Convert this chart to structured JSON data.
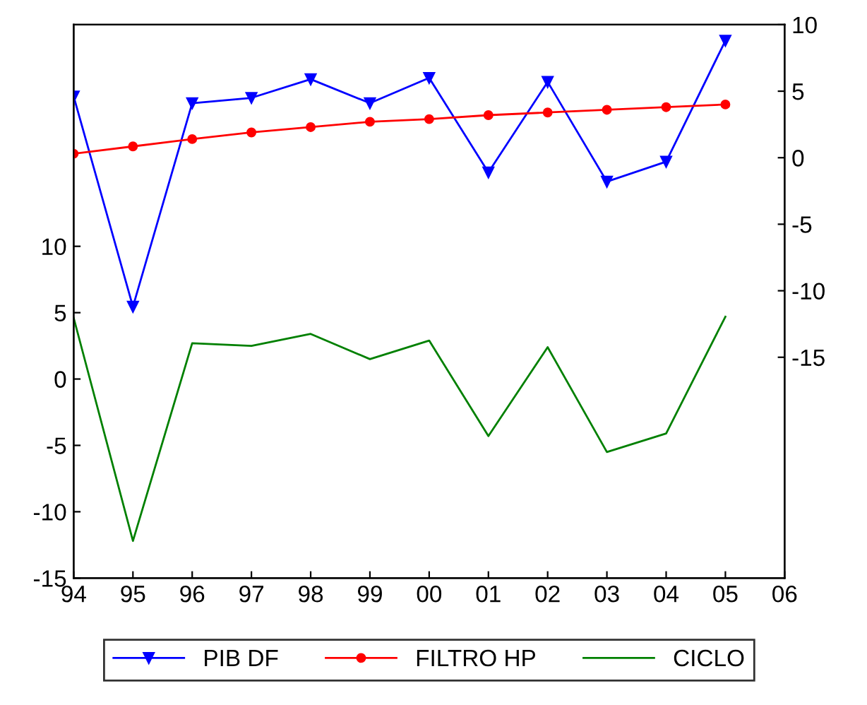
{
  "chart_data": {
    "type": "line",
    "x": [
      1994,
      1995,
      1996,
      1997,
      1998,
      1999,
      2000,
      2001,
      2002,
      2003,
      2004,
      2005
    ],
    "series": [
      {
        "name": "PIB DF",
        "color": "#0000ff",
        "axis": "y2",
        "marker": "triangle",
        "values": [
          4.6,
          -11.2,
          4.1,
          4.5,
          5.9,
          4.1,
          6.0,
          -1.1,
          5.7,
          -1.8,
          -0.3,
          8.8
        ]
      },
      {
        "name": "FILTRO HP",
        "color": "#ff0000",
        "axis": "y2",
        "marker": "circle",
        "values": [
          0.3,
          0.85,
          1.4,
          1.9,
          2.3,
          2.7,
          2.9,
          3.2,
          3.4,
          3.6,
          3.8,
          4.0
        ]
      },
      {
        "name": "CICLO",
        "color": "#008000",
        "marker": "none",
        "values": [
          4.6,
          -12.2,
          2.7,
          2.5,
          3.4,
          1.5,
          2.9,
          -4.3,
          2.4,
          -5.5,
          -4.1,
          4.7
        ]
      }
    ],
    "xlim": [
      1994,
      2006
    ],
    "xticks": [
      {
        "value": 1994,
        "label": "94"
      },
      {
        "value": 1995,
        "label": "95"
      },
      {
        "value": 1996,
        "label": "96"
      },
      {
        "value": 1997,
        "label": "97"
      },
      {
        "value": 1998,
        "label": "98"
      },
      {
        "value": 1999,
        "label": "99"
      },
      {
        "value": 2000,
        "label": "00"
      },
      {
        "value": 2001,
        "label": "01"
      },
      {
        "value": 2002,
        "label": "02"
      },
      {
        "value": 2003,
        "label": "03"
      },
      {
        "value": 2004,
        "label": "04"
      },
      {
        "value": 2005,
        "label": "05"
      },
      {
        "value": 2006,
        "label": "06"
      }
    ],
    "ylim": [
      -15,
      26.7
    ],
    "yticks": [
      -15,
      -10,
      -5,
      0,
      5,
      10
    ],
    "y2lim": [
      -31.6,
      10
    ],
    "y2ticks": [
      -15,
      -10,
      -5,
      0,
      5,
      10
    ],
    "legend": "bottom",
    "grid": false,
    "line_style": "solid"
  }
}
